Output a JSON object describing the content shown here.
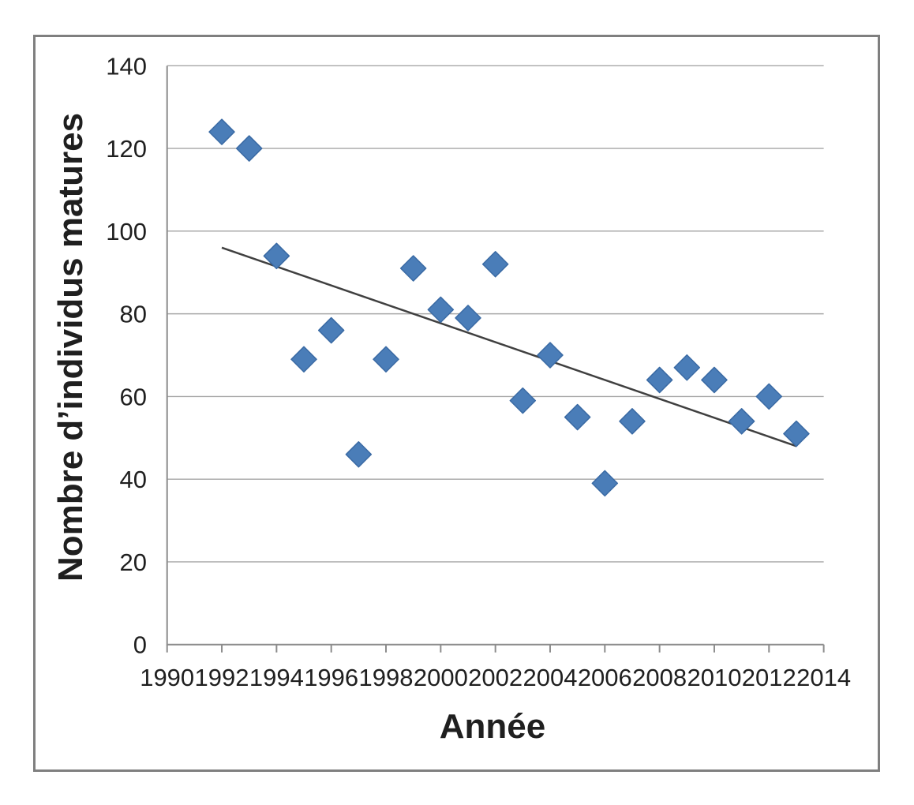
{
  "chart_data": {
    "type": "scatter",
    "title": "",
    "xlabel": "Année",
    "ylabel": "Nombre d’individus matures",
    "x": [
      1992,
      1993,
      1994,
      1995,
      1996,
      1997,
      1998,
      1999,
      2000,
      2001,
      2002,
      2003,
      2004,
      2005,
      2006,
      2007,
      2008,
      2009,
      2010,
      2011,
      2012,
      2013
    ],
    "y": [
      124,
      120,
      94,
      69,
      76,
      46,
      69,
      91,
      81,
      79,
      92,
      59,
      70,
      55,
      39,
      54,
      64,
      67,
      64,
      54,
      60,
      51
    ],
    "xlim": [
      1990,
      2014
    ],
    "ylim": [
      0,
      140
    ],
    "x_ticks": [
      1990,
      1992,
      1994,
      1996,
      1998,
      2000,
      2002,
      2004,
      2006,
      2008,
      2010,
      2012,
      2014
    ],
    "y_ticks": [
      0,
      20,
      40,
      60,
      80,
      100,
      120,
      140
    ],
    "grid": "horizontal-only",
    "legend": "none",
    "marker": "diamond",
    "trendline": {
      "x1": 1992,
      "y1": 96,
      "x2": 2013,
      "y2": 48
    }
  },
  "colors": {
    "marker_fill": "#4a7db8",
    "marker_stroke": "#3a6aa4",
    "gridline": "#a6a6a6",
    "axis_line": "#8c8c8c",
    "trendline": "#404040",
    "tick_text": "#1f1f1f",
    "title_text": "#1f1f1f",
    "outer_border": "#7f7f7f"
  }
}
